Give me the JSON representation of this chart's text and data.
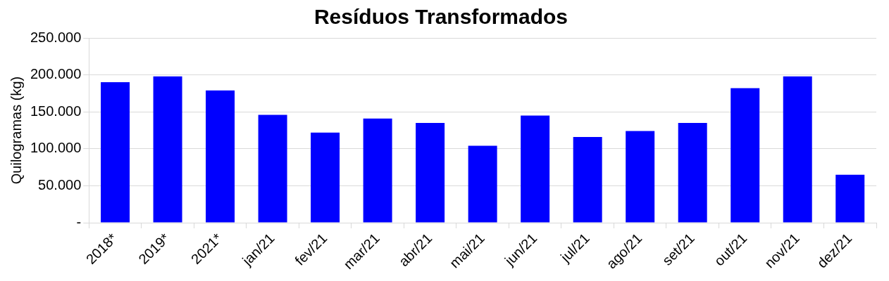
{
  "chart_data": {
    "type": "bar",
    "title": "Resíduos Transformados",
    "ylabel": "Quilogramas (kg)",
    "categories": [
      "2018*",
      "2019*",
      "2021*",
      "jan/21",
      "fev/21",
      "mar/21",
      "abr/21",
      "mai/21",
      "jun/21",
      "jul/21",
      "ago/21",
      "set/21",
      "out/21",
      "nov/21",
      "dez/21"
    ],
    "values": [
      190000,
      198000,
      179000,
      146000,
      122000,
      141000,
      135000,
      104000,
      145000,
      116000,
      124000,
      135000,
      182000,
      198000,
      65000
    ],
    "color": "#0000ff",
    "ylim": [
      0,
      250000
    ],
    "yticks": [
      {
        "value": 0,
        "label": "-"
      },
      {
        "value": 50000,
        "label": "50.000"
      },
      {
        "value": 100000,
        "label": "100.000"
      },
      {
        "value": 150000,
        "label": "150.000"
      },
      {
        "value": 200000,
        "label": "200.000"
      },
      {
        "value": 250000,
        "label": "250.000"
      }
    ],
    "grid": "y",
    "legend": false
  }
}
